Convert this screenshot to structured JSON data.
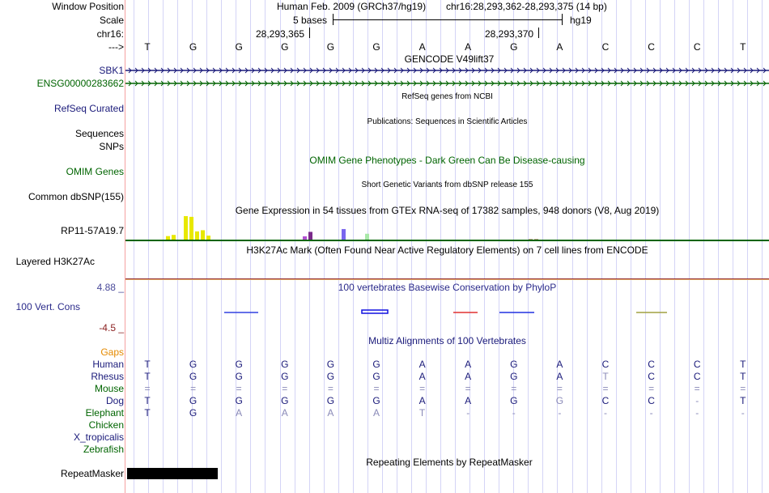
{
  "header": {
    "labels": {
      "window_position": "Window Position",
      "scale": "Scale",
      "chrom": "chr16:",
      "strand": "--->"
    },
    "assembly_text": "Human Feb. 2009 (GRCh37/hg19)",
    "position_text": "chr16:28,293,362-28,293,375 (14 bp)",
    "scale_text": "5 bases",
    "scale_assembly": "hg19",
    "coord_ticks": [
      "28,293,365",
      "28,293,370"
    ]
  },
  "bases": [
    "T",
    "G",
    "G",
    "G",
    "G",
    "G",
    "A",
    "A",
    "G",
    "A",
    "C",
    "C",
    "C",
    "T"
  ],
  "tracks": {
    "gencode": {
      "title": "GENCODE V49lift37",
      "genes": [
        {
          "name": "SBK1",
          "color": "#1a1a7a"
        },
        {
          "name": "ENSG00000283662",
          "color": "#006400"
        }
      ]
    },
    "refseq": {
      "label": "RefSeq Curated",
      "title": "RefSeq genes from NCBI"
    },
    "publications": {
      "label": "Sequences",
      "title": "Publications: Sequences in Scientific Articles"
    },
    "snps_label": "SNPs",
    "omim": {
      "label": "OMIM Genes",
      "title": "OMIM Gene Phenotypes - Dark Green Can Be Disease-causing"
    },
    "dbsnp": {
      "label": "Common dbSNP(155)",
      "title": "Short Genetic Variants from dbSNP release 155"
    },
    "gtex": {
      "title": "Gene Expression in 54 tissues from GTEx RNA-seq of 17382 samples, 948 donors (V8, Aug 2019)",
      "gene": "RP11-57A19.7",
      "bars": [
        {
          "value": 0.15,
          "color": "#e8e800"
        },
        {
          "value": 0.2,
          "color": "#e8e800"
        },
        {
          "value": 1.0,
          "color": "#e8e800"
        },
        {
          "value": 0.97,
          "color": "#e8e800"
        },
        {
          "value": 0.35,
          "color": "#e8e800"
        },
        {
          "value": 0.4,
          "color": "#e8e800"
        },
        {
          "value": 0.17,
          "color": "#e8e800"
        },
        {
          "value": 0.14,
          "color": "#b04fd0"
        },
        {
          "value": 0.33,
          "color": "#7a2a8a"
        },
        {
          "value": 0.45,
          "color": "#7a66ee"
        },
        {
          "value": 0.25,
          "color": "#a8e8a8"
        },
        {
          "value": 0.03,
          "color": "#c0a890"
        },
        {
          "value": 0.03,
          "color": "#c0a890"
        }
      ]
    },
    "h3k27ac": {
      "label": "Layered H3K27Ac",
      "title": "H3K27Ac Mark (Often Found Near Active Regulatory Elements) on 7 cell lines from ENCODE"
    },
    "phylop": {
      "label": "100 Vert. Cons",
      "title": "100 vertebrates Basewise Conservation by PhyloP",
      "max": "4.88 _",
      "min": "-4.5 _"
    },
    "multiz": {
      "title": "Multiz Alignments of 100 Vertebrates",
      "gaps_label": "Gaps",
      "species": [
        {
          "name": "Human",
          "color": "#1a1a7a",
          "seq": [
            "T",
            "G",
            "G",
            "G",
            "G",
            "G",
            "A",
            "A",
            "G",
            "A",
            "C",
            "C",
            "C",
            "T"
          ]
        },
        {
          "name": "Rhesus",
          "color": "#1a1a7a",
          "seq": [
            "T",
            "G",
            "G",
            "G",
            "G",
            "G",
            "A",
            "A",
            "G",
            "A",
            "T",
            "C",
            "C",
            "T"
          ]
        },
        {
          "name": "Mouse",
          "color": "#006400",
          "seq": [
            "=",
            "=",
            "=",
            "=",
            "=",
            "=",
            "=",
            "=",
            "=",
            "=",
            "=",
            "=",
            "=",
            "="
          ]
        },
        {
          "name": "Dog",
          "color": "#1a1a7a",
          "seq": [
            "T",
            "G",
            "G",
            "G",
            "G",
            "G",
            "A",
            "A",
            "G",
            "G",
            "C",
            "C",
            "-",
            "T"
          ]
        },
        {
          "name": "Elephant",
          "color": "#006400",
          "seq": [
            "T",
            "G",
            "A",
            "A",
            "A",
            "A",
            "T",
            "-",
            "-",
            "-",
            "-",
            "-",
            "-",
            "-"
          ]
        },
        {
          "name": "Chicken",
          "color": "#006400",
          "seq": []
        },
        {
          "name": "X_tropicalis",
          "color": "#1a1a7a",
          "seq": []
        },
        {
          "name": "Zebrafish",
          "color": "#006400",
          "seq": []
        }
      ]
    },
    "repeatmasker": {
      "label": "RepeatMasker",
      "title": "Repeating Elements by RepeatMasker"
    }
  }
}
